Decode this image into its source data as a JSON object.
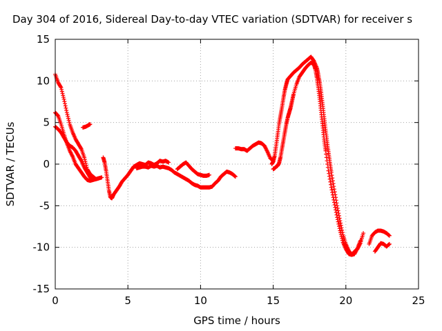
{
  "chart_data": {
    "type": "scatter",
    "title": "Day 304 of 2016, Sidereal Day-to-day VTEC variation (SDTVAR) for receiver s",
    "xlabel": "GPS time / hours",
    "ylabel": "SDTVAR / TECUs",
    "xlim": [
      0,
      25
    ],
    "ylim": [
      -15,
      15
    ],
    "xticks": [
      0,
      5,
      10,
      15,
      20,
      25
    ],
    "yticks": [
      -15,
      -10,
      -5,
      0,
      5,
      10,
      15
    ],
    "grid": true,
    "marker": "plus",
    "color": "#ff0000",
    "series": [
      {
        "x": [
          0.0,
          0.2,
          0.4,
          0.6,
          0.8,
          1.0,
          1.2,
          1.4,
          1.6,
          1.8,
          2.0,
          2.2,
          2.4,
          2.6,
          2.8,
          3.0,
          3.2
        ],
        "y": [
          10.8,
          9.8,
          9.2,
          7.8,
          6.2,
          4.8,
          3.8,
          3.0,
          2.4,
          1.8,
          0.8,
          -0.6,
          -1.2,
          -1.5,
          -1.8,
          -1.7,
          -1.6
        ]
      },
      {
        "x": [
          0.0,
          0.2,
          0.4,
          0.6,
          0.8,
          1.0,
          1.2,
          1.4,
          1.6,
          1.8,
          2.0,
          2.2,
          2.4,
          2.6,
          2.8
        ],
        "y": [
          6.2,
          5.8,
          4.8,
          3.6,
          2.5,
          1.6,
          0.9,
          0.0,
          -0.5,
          -1.0,
          -1.5,
          -1.9,
          -2.0,
          -1.9,
          -1.8
        ]
      },
      {
        "x": [
          0.0,
          0.2,
          0.4,
          0.6,
          0.8,
          1.0,
          1.2,
          1.4,
          1.6,
          1.8,
          2.0,
          2.2,
          2.4,
          2.6,
          2.8,
          3.0
        ],
        "y": [
          4.5,
          4.2,
          3.8,
          3.2,
          2.6,
          2.2,
          2.0,
          1.6,
          1.0,
          0.4,
          -0.4,
          -1.0,
          -1.6,
          -1.8,
          -1.8,
          -1.7
        ]
      },
      {
        "x": [
          1.9,
          2.1,
          2.3,
          2.4
        ],
        "y": [
          4.4,
          4.5,
          4.7,
          4.8
        ]
      },
      {
        "x": [
          3.3,
          3.4,
          3.5,
          3.6,
          3.7,
          3.8,
          3.9,
          4.0,
          4.2,
          4.4,
          4.6,
          4.8,
          5.0,
          5.2,
          5.4,
          5.6,
          5.8,
          6.0,
          6.2,
          6.4,
          6.6,
          6.8,
          7.0,
          7.2,
          7.4,
          7.6,
          7.8
        ],
        "y": [
          0.8,
          0.2,
          -0.8,
          -2.0,
          -3.2,
          -4.0,
          -4.1,
          -3.7,
          -3.2,
          -2.7,
          -2.1,
          -1.7,
          -1.3,
          -0.8,
          -0.3,
          -0.1,
          0.1,
          0.0,
          -0.1,
          0.2,
          0.1,
          -0.1,
          0.1,
          0.4,
          0.3,
          0.4,
          0.2
        ]
      },
      {
        "x": [
          5.6,
          5.8,
          6.0,
          6.2,
          6.4,
          6.6,
          6.8,
          7.0,
          7.2,
          7.4,
          7.6,
          7.8,
          8.0,
          8.2,
          8.4,
          8.6,
          8.8,
          9.0,
          9.2,
          9.4,
          9.6,
          9.8,
          10.0,
          10.2,
          10.4,
          10.6,
          10.8,
          11.0,
          11.2,
          11.4,
          11.6,
          11.8,
          12.0,
          12.2,
          12.4
        ],
        "y": [
          -0.5,
          -0.4,
          -0.3,
          -0.3,
          -0.4,
          -0.2,
          -0.3,
          -0.2,
          -0.4,
          -0.3,
          -0.4,
          -0.5,
          -0.7,
          -1.0,
          -1.2,
          -1.4,
          -1.6,
          -1.8,
          -2.0,
          -2.3,
          -2.5,
          -2.6,
          -2.8,
          -2.8,
          -2.8,
          -2.8,
          -2.7,
          -2.3,
          -2.0,
          -1.5,
          -1.2,
          -0.9,
          -1.0,
          -1.2,
          -1.5
        ]
      },
      {
        "x": [
          8.4,
          8.6,
          8.8,
          9.0,
          9.2,
          9.4,
          9.6,
          9.8,
          10.0,
          10.2,
          10.4,
          10.6
        ],
        "y": [
          -0.6,
          -0.3,
          0.0,
          0.2,
          -0.2,
          -0.6,
          -0.9,
          -1.2,
          -1.3,
          -1.4,
          -1.4,
          -1.3
        ]
      },
      {
        "x": [
          12.4,
          12.6,
          12.8,
          13.0,
          13.2,
          13.4,
          13.6,
          13.8,
          14.0,
          14.2,
          14.4,
          14.6,
          14.8,
          15.0
        ],
        "y": [
          1.9,
          1.9,
          1.8,
          1.8,
          1.6,
          1.9,
          2.2,
          2.4,
          2.6,
          2.5,
          2.2,
          1.5,
          0.7,
          0.4
        ]
      },
      {
        "x": [
          14.9,
          15.0,
          15.1,
          15.2,
          15.3,
          15.4,
          15.5,
          15.6,
          15.7,
          15.8,
          15.9,
          16.0,
          16.2,
          16.4,
          16.6,
          16.8,
          17.0,
          17.2,
          17.4,
          17.6,
          17.8,
          18.0,
          18.1,
          18.2,
          18.3,
          18.4,
          18.5,
          18.6,
          18.7,
          18.8,
          18.9,
          19.0,
          19.2,
          19.4,
          19.6,
          19.8,
          20.0,
          20.2,
          20.4,
          20.6,
          20.8,
          21.0
        ],
        "y": [
          0.0,
          0.3,
          1.0,
          2.2,
          3.5,
          4.8,
          5.8,
          6.8,
          7.9,
          8.9,
          9.6,
          10.2,
          10.6,
          11.0,
          11.3,
          11.6,
          12.0,
          12.3,
          12.6,
          12.9,
          12.4,
          11.6,
          10.8,
          9.8,
          8.6,
          7.2,
          5.7,
          4.2,
          2.8,
          1.5,
          0.2,
          -1.0,
          -3.0,
          -5.0,
          -6.8,
          -8.5,
          -9.6,
          -10.4,
          -10.9,
          -10.8,
          -10.1,
          -9.2
        ]
      },
      {
        "x": [
          15.0,
          15.1,
          15.2,
          15.3,
          15.4,
          15.5,
          15.6,
          15.7,
          15.8,
          15.9,
          16.0,
          16.1,
          16.2,
          16.3,
          16.4,
          16.6,
          16.8,
          17.0,
          17.2,
          17.4,
          17.6,
          17.8,
          17.9,
          18.0,
          18.1,
          18.2,
          18.3,
          18.4,
          18.5,
          18.6,
          18.8,
          19.0,
          19.2,
          19.4,
          19.6,
          19.8,
          20.0,
          20.2,
          20.4,
          20.6
        ],
        "y": [
          -0.6,
          -0.5,
          -0.3,
          -0.2,
          0.1,
          0.8,
          1.8,
          2.8,
          3.8,
          4.8,
          5.6,
          6.2,
          6.8,
          7.6,
          8.4,
          9.6,
          10.5,
          11.0,
          11.5,
          11.9,
          12.2,
          12.0,
          11.4,
          10.4,
          9.2,
          7.8,
          6.2,
          4.6,
          3.0,
          1.6,
          -0.8,
          -2.8,
          -4.6,
          -6.4,
          -8.0,
          -9.4,
          -10.2,
          -10.8,
          -10.9,
          -10.6
        ]
      },
      {
        "x": [
          20.4,
          20.6,
          20.8,
          21.0,
          21.2
        ],
        "y": [
          -10.9,
          -10.5,
          -10.2,
          -9.5,
          -8.3
        ]
      },
      {
        "x": [
          21.6,
          21.8,
          22.0,
          22.2,
          22.4,
          22.6,
          22.8,
          23.0
        ],
        "y": [
          -9.6,
          -8.6,
          -8.2,
          -8.0,
          -8.0,
          -8.1,
          -8.3,
          -8.6
        ]
      },
      {
        "x": [
          22.0,
          22.2,
          22.4,
          22.6,
          22.8,
          23.0
        ],
        "y": [
          -10.5,
          -10.0,
          -9.5,
          -9.6,
          -9.9,
          -9.6
        ]
      }
    ]
  }
}
